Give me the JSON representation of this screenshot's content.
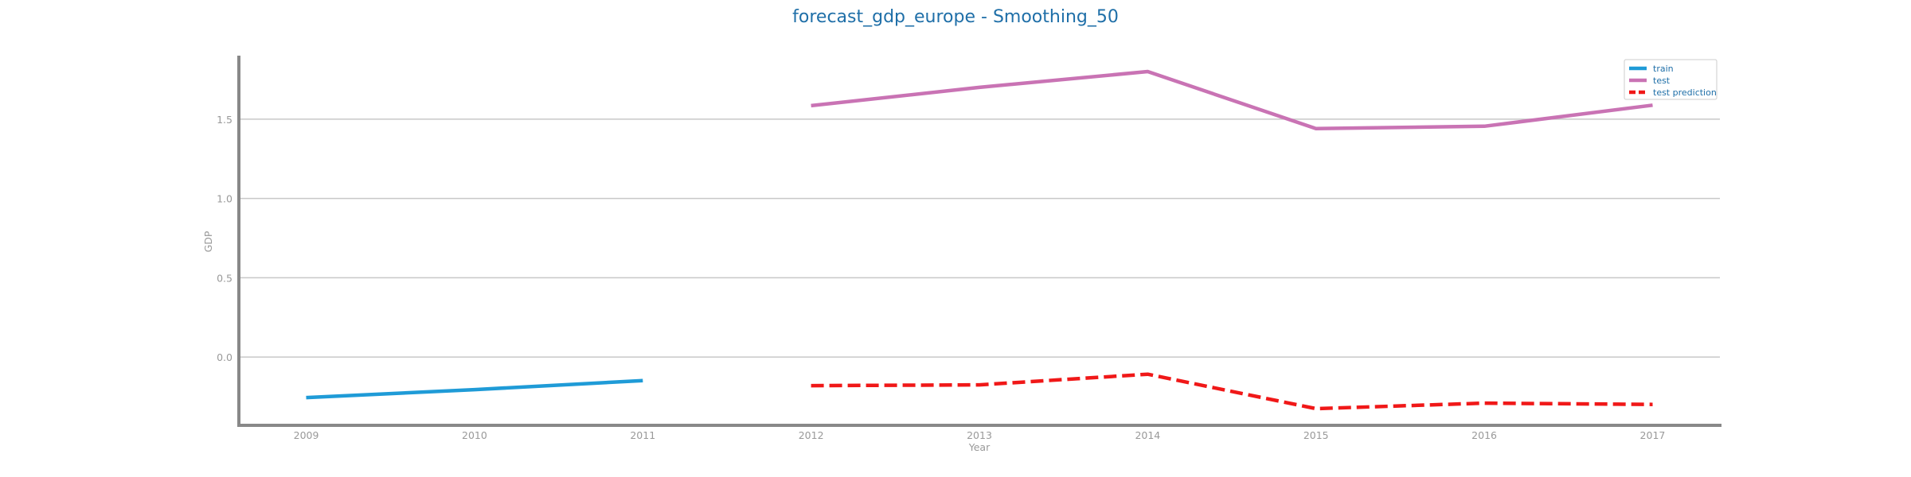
{
  "chart_data": {
    "type": "line",
    "title": "forecast_gdp_europe - Smoothing_50",
    "xlabel": "Year",
    "ylabel": "GDP",
    "x_ticks": [
      "2009",
      "2010",
      "2011",
      "2012",
      "2013",
      "2014",
      "2015",
      "2016",
      "2017"
    ],
    "y_ticks": [
      "0.0",
      "0.5",
      "1.0",
      "1.5"
    ],
    "xlim": [
      2008.6,
      2017.4
    ],
    "ylim": [
      -0.43,
      1.9
    ],
    "grid": "horizontal",
    "legend_position": "top-right",
    "series": [
      {
        "name": "train",
        "color": "#1f9bd7",
        "style": "solid",
        "x": [
          2009,
          2010,
          2011
        ],
        "y": [
          -0.255,
          -0.205,
          -0.148
        ]
      },
      {
        "name": "test",
        "color": "#c973b4",
        "style": "solid",
        "x": [
          2012,
          2013,
          2014,
          2015,
          2016,
          2017
        ],
        "y": [
          1.585,
          1.7,
          1.8,
          1.44,
          1.455,
          1.588
        ]
      },
      {
        "name": "test prediction",
        "color": "#f01818",
        "style": "dashed",
        "x": [
          2012,
          2013,
          2014,
          2015,
          2016,
          2017
        ],
        "y": [
          -0.18,
          -0.175,
          -0.108,
          -0.325,
          -0.29,
          -0.298
        ]
      }
    ]
  }
}
